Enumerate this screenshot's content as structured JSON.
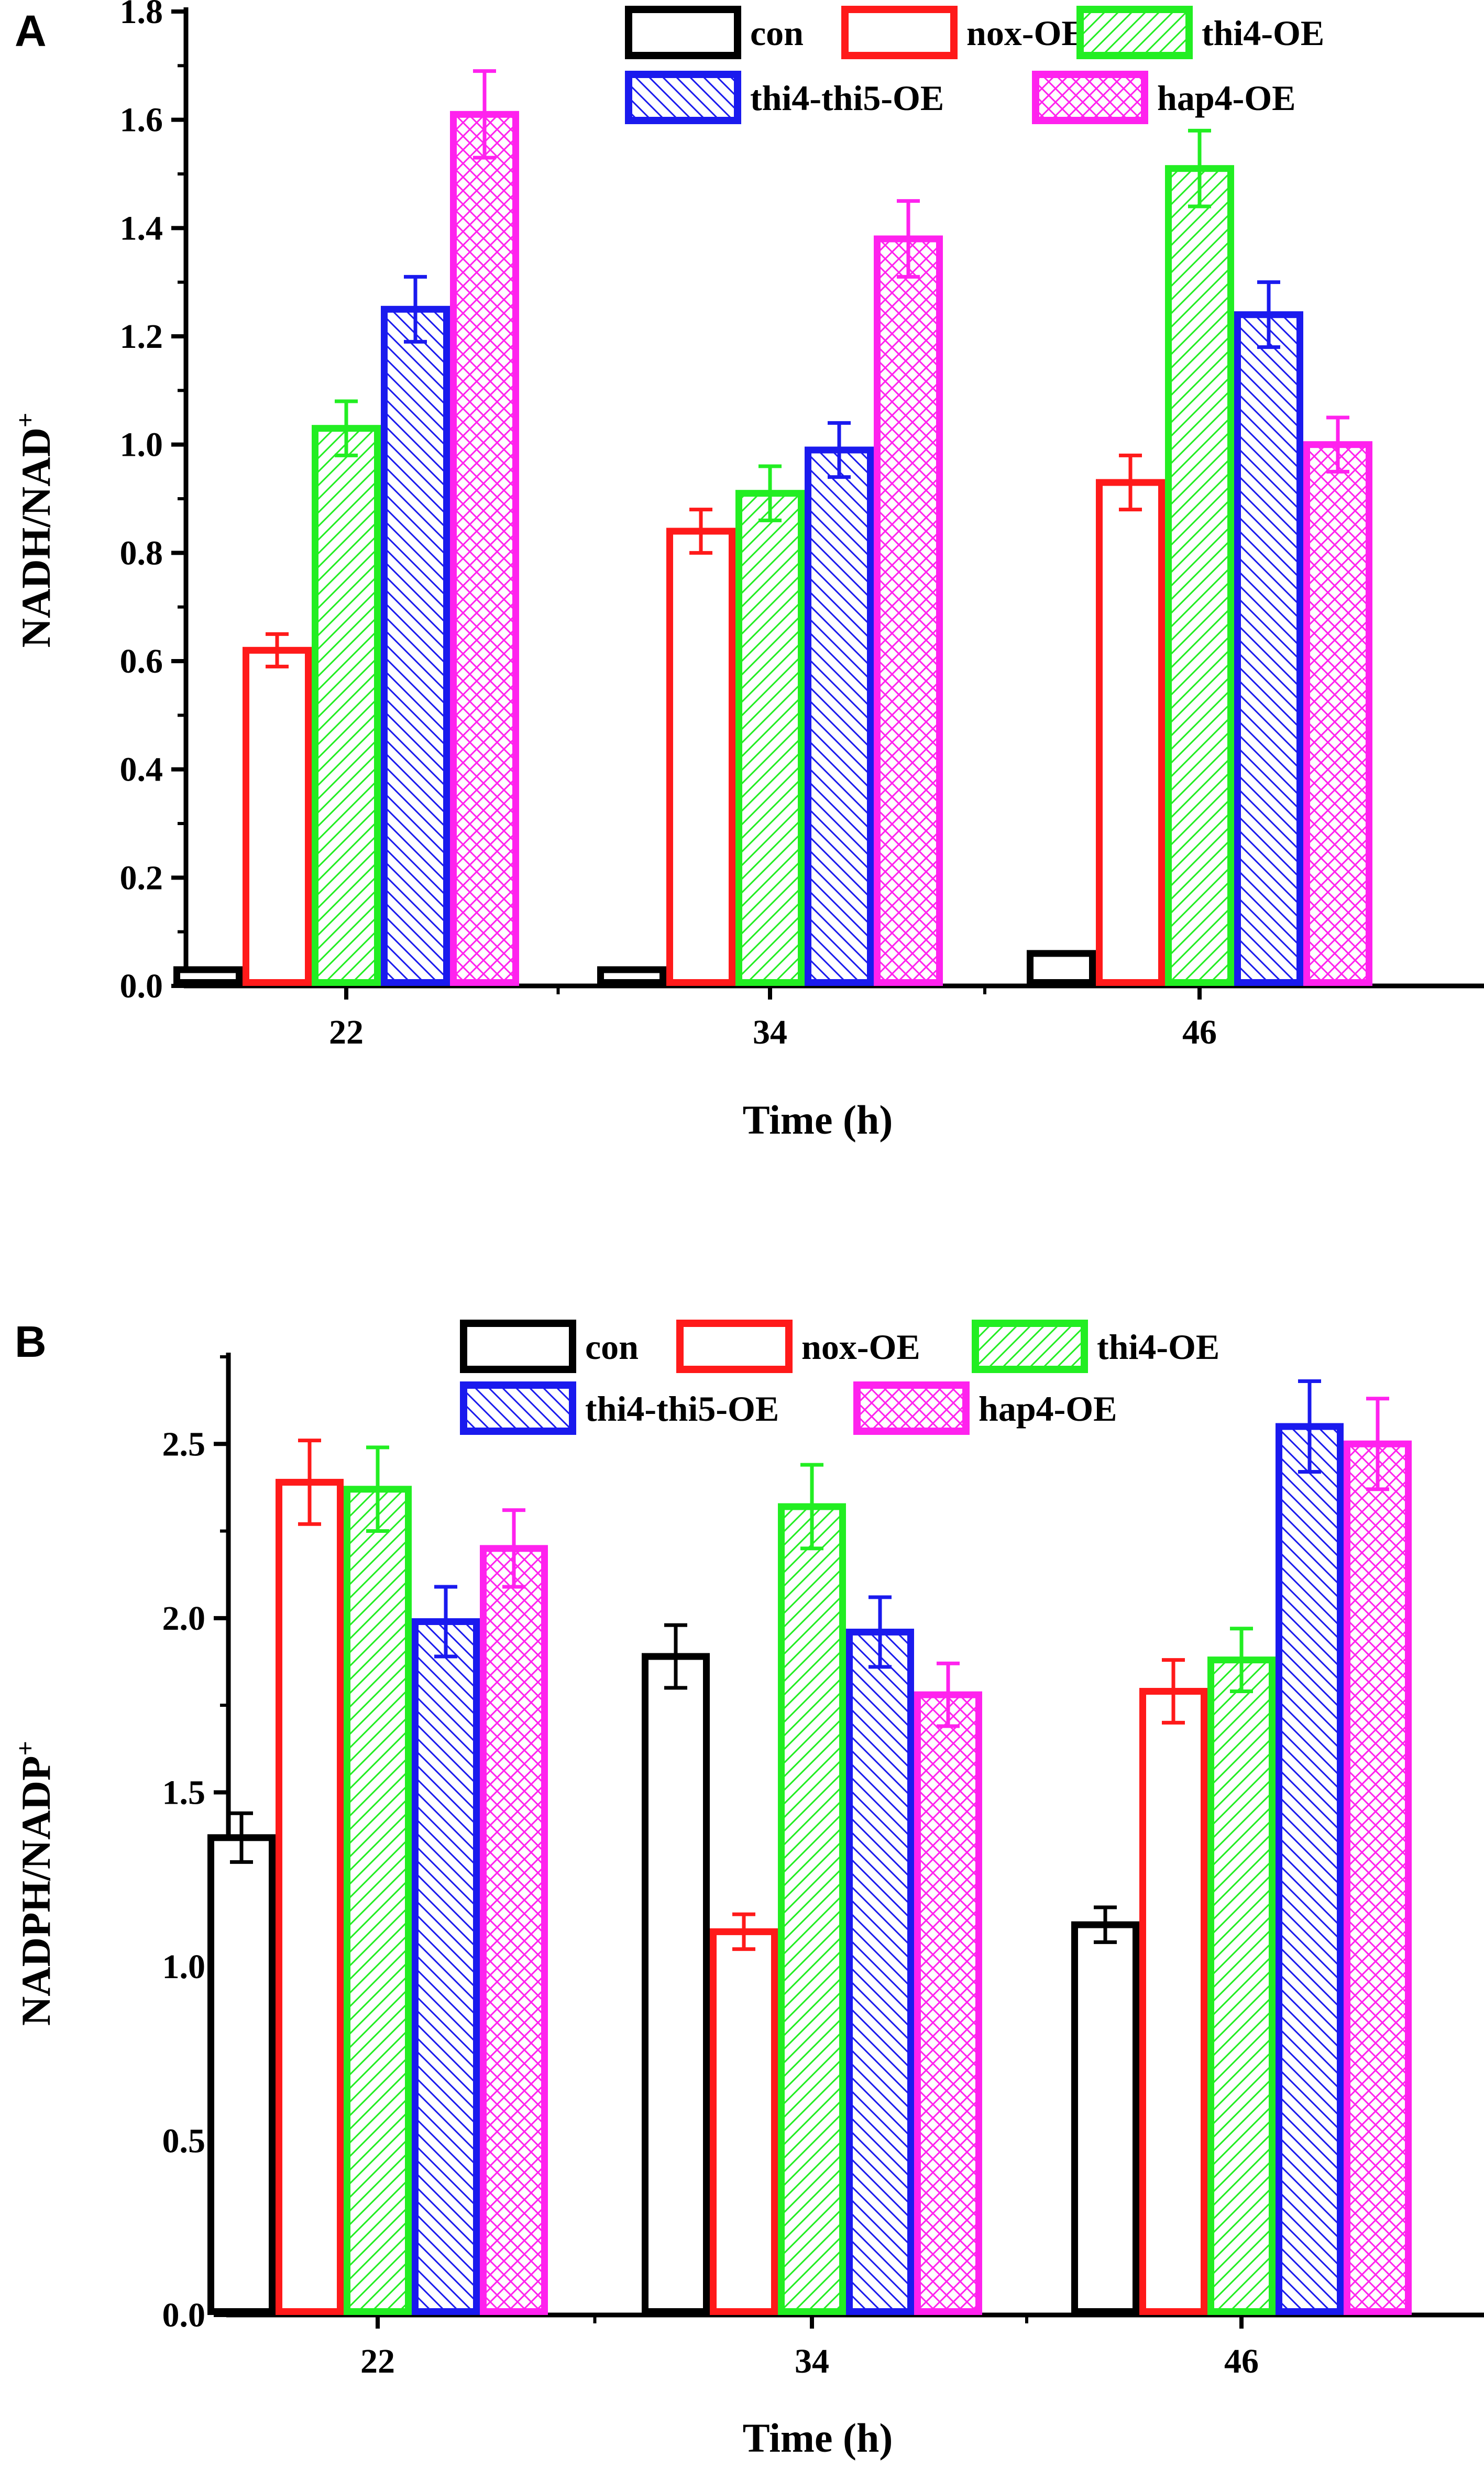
{
  "figure": {
    "panel_labels": [
      "A",
      "B"
    ]
  },
  "chart_data": [
    {
      "panel": "A",
      "type": "bar",
      "xlabel": "Time (h)",
      "ylabel": "NADH/NAD",
      "ylabel_sup": "+",
      "ylim": [
        0,
        1.8
      ],
      "yticks": [
        "0.0",
        "0.2",
        "0.4",
        "0.6",
        "0.8",
        "1.0",
        "1.2",
        "1.4",
        "1.6",
        "1.8"
      ],
      "categories": [
        "22",
        "34",
        "46"
      ],
      "legend": [
        {
          "name": "con",
          "color": "#000000",
          "pattern": "none"
        },
        {
          "name": "nox-OE",
          "color": "#ff1a1a",
          "pattern": "none"
        },
        {
          "name": "thi4-OE",
          "color": "#22ee22",
          "pattern": "diag-up"
        },
        {
          "name": "thi4-thi5-OE",
          "color": "#1a1aee",
          "pattern": "diag-down"
        },
        {
          "name": "hap4-OE",
          "color": "#ff22ee",
          "pattern": "cross"
        }
      ],
      "series": [
        {
          "name": "con",
          "values": [
            0.03,
            0.03,
            0.06
          ],
          "errors": [
            0,
            0,
            0
          ]
        },
        {
          "name": "nox-OE",
          "values": [
            0.62,
            0.84,
            0.93
          ],
          "errors": [
            0.03,
            0.04,
            0.05
          ]
        },
        {
          "name": "thi4-OE",
          "values": [
            1.03,
            0.91,
            1.51
          ],
          "errors": [
            0.05,
            0.05,
            0.07
          ]
        },
        {
          "name": "thi4-thi5-OE",
          "values": [
            1.25,
            0.99,
            1.24
          ],
          "errors": [
            0.06,
            0.05,
            0.06
          ]
        },
        {
          "name": "hap4-OE",
          "values": [
            1.61,
            1.38,
            1.0
          ],
          "errors": [
            0.08,
            0.07,
            0.05
          ]
        }
      ]
    },
    {
      "panel": "B",
      "type": "bar",
      "xlabel": "Time (h)",
      "ylabel": "NADPH/NADP",
      "ylabel_sup": "+",
      "ylim": [
        0,
        2.75
      ],
      "yticks": [
        "0.0",
        "0.5",
        "1.0",
        "1.5",
        "2.0",
        "2.5"
      ],
      "categories": [
        "22",
        "34",
        "46"
      ],
      "legend": [
        {
          "name": "con",
          "color": "#000000",
          "pattern": "none"
        },
        {
          "name": "nox-OE",
          "color": "#ff1a1a",
          "pattern": "none"
        },
        {
          "name": "thi4-OE",
          "color": "#22ee22",
          "pattern": "diag-up"
        },
        {
          "name": "thi4-thi5-OE",
          "color": "#1a1aee",
          "pattern": "diag-down"
        },
        {
          "name": "hap4-OE",
          "color": "#ff22ee",
          "pattern": "cross"
        }
      ],
      "series": [
        {
          "name": "con",
          "values": [
            1.37,
            1.89,
            1.12
          ],
          "errors": [
            0.07,
            0.09,
            0.05
          ]
        },
        {
          "name": "nox-OE",
          "values": [
            2.39,
            1.1,
            1.79
          ],
          "errors": [
            0.12,
            0.05,
            0.09
          ]
        },
        {
          "name": "thi4-OE",
          "values": [
            2.37,
            2.32,
            1.88
          ],
          "errors": [
            0.12,
            0.12,
            0.09
          ]
        },
        {
          "name": "thi4-thi5-OE",
          "values": [
            1.99,
            1.96,
            2.55
          ],
          "errors": [
            0.1,
            0.1,
            0.13
          ]
        },
        {
          "name": "hap4-OE",
          "values": [
            2.2,
            1.78,
            2.5
          ],
          "errors": [
            0.11,
            0.09,
            0.13
          ]
        }
      ]
    }
  ]
}
